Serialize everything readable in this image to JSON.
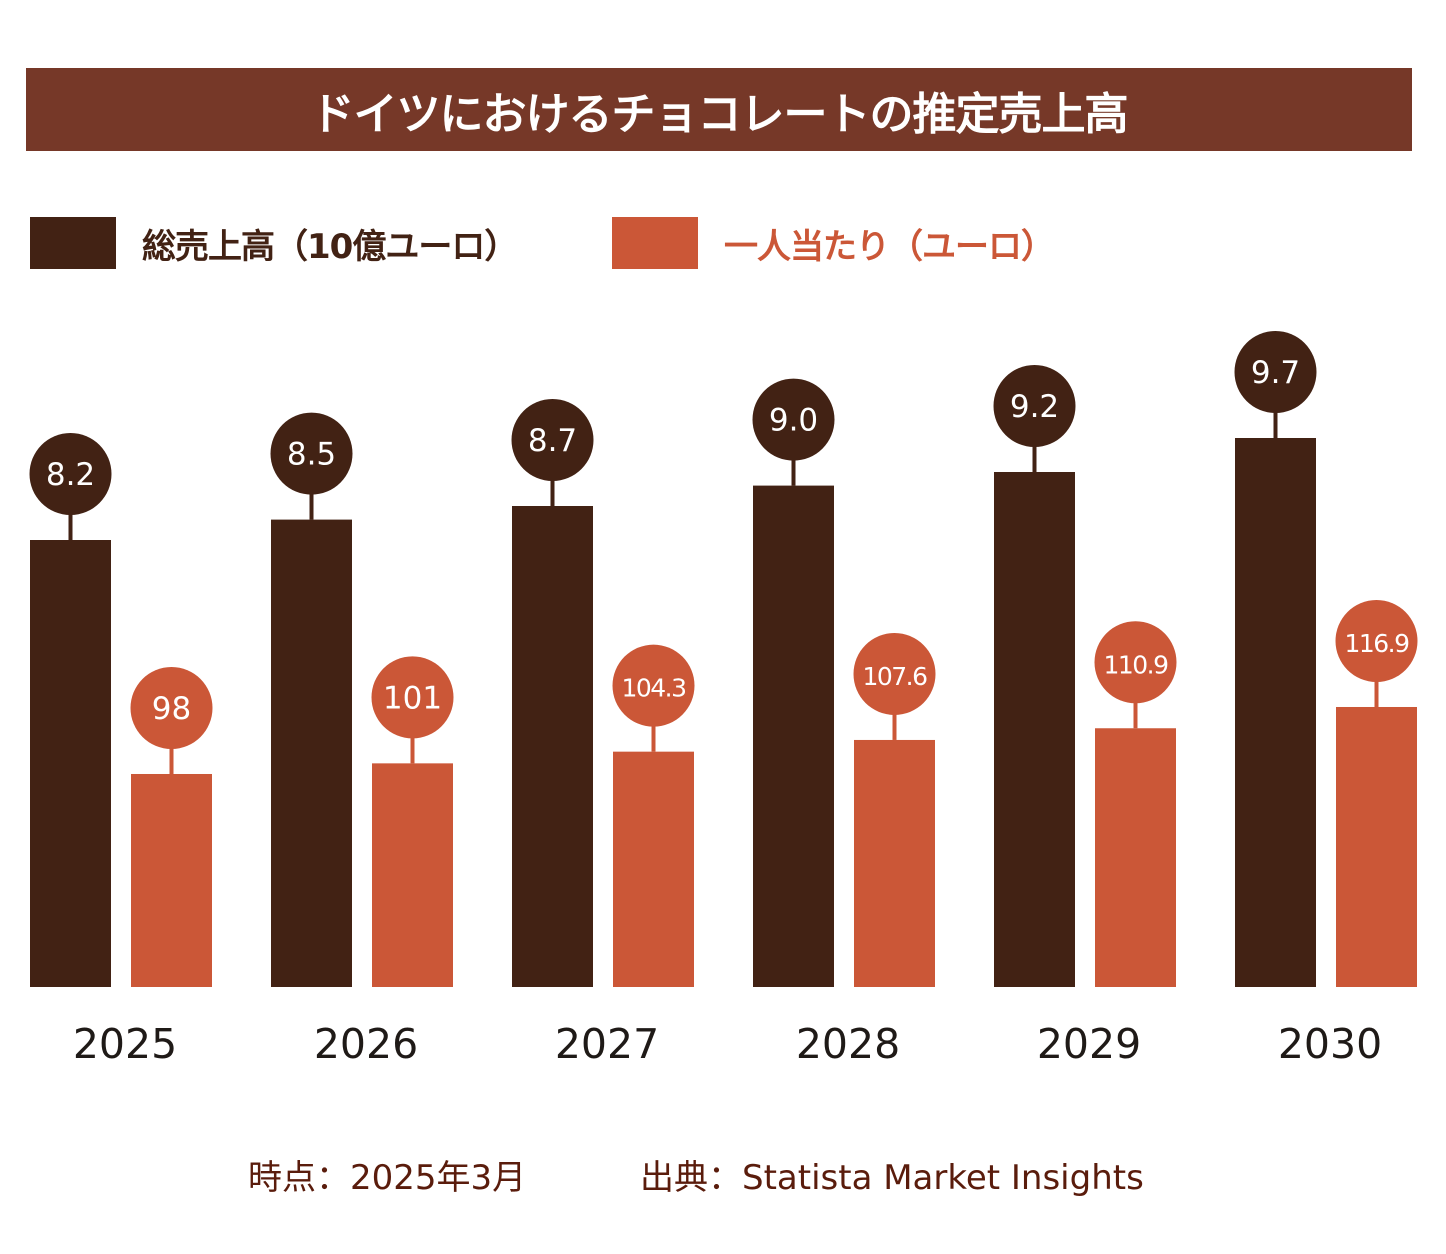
{
  "chart_data": {
    "type": "bar",
    "title": "ドイツにおけるチョコレートの推定売上高",
    "categories": [
      "2025",
      "2026",
      "2027",
      "2028",
      "2029",
      "2030"
    ],
    "series": [
      {
        "name": "総売上高（10億ユーロ）",
        "color": "#422214",
        "values": [
          8.2,
          8.5,
          8.7,
          9.0,
          9.2,
          9.7
        ],
        "labels": [
          "8.2",
          "8.5",
          "8.7",
          "9.0",
          "9.2",
          "9.7"
        ]
      },
      {
        "name": "一人当たり（ユーロ）",
        "color": "#cb5737",
        "values": [
          98,
          101,
          104.3,
          107.6,
          110.9,
          116.9
        ],
        "labels": [
          "98",
          "101",
          "104.3",
          "107.6",
          "110.9",
          "116.9"
        ]
      }
    ],
    "legend_position": "top-left",
    "grid": false
  },
  "footer": {
    "date": "時点：2025年3月",
    "source": "出典：Statista Market Insights"
  },
  "colors": {
    "title_bg": "#763828",
    "footer_text": "#5a1c0c"
  }
}
